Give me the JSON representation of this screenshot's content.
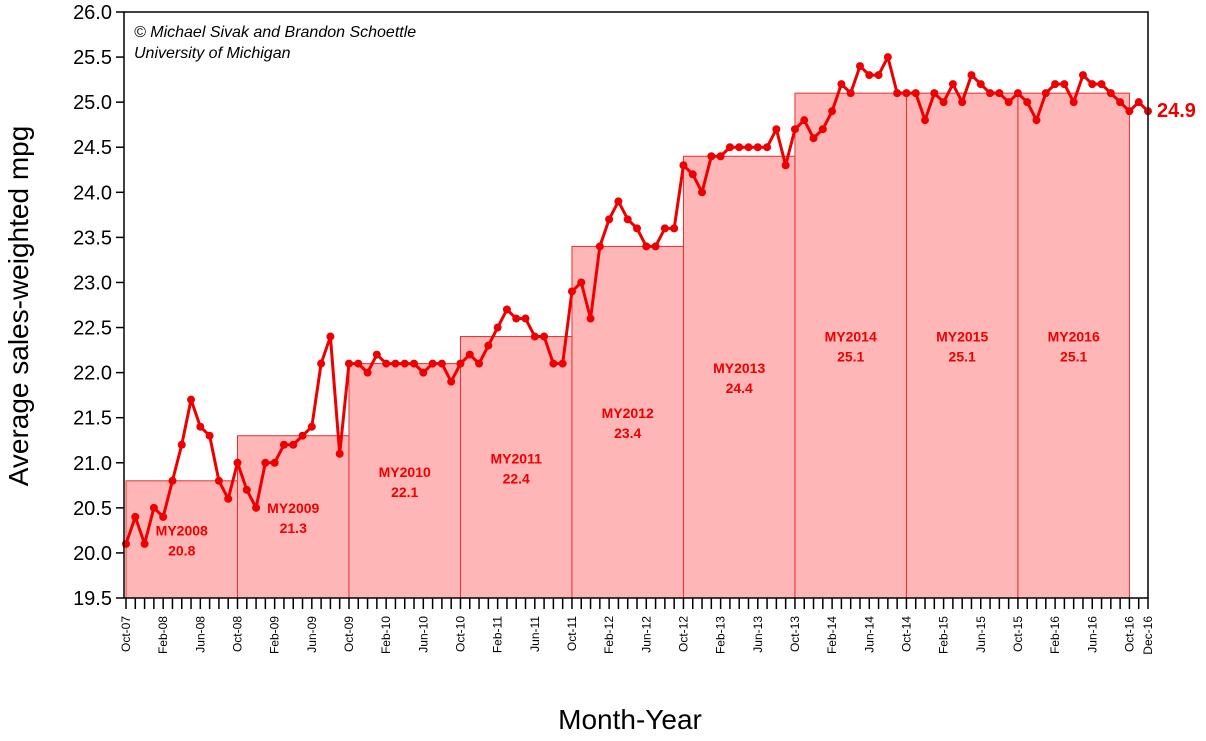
{
  "chart_data": {
    "type": "line",
    "title": "",
    "xlabel": "Month-Year",
    "ylabel": "Average sales-weighted mpg",
    "ylim": [
      19.5,
      26.0
    ],
    "yticks": [
      "19.5",
      "20.0",
      "20.5",
      "21.0",
      "21.5",
      "22.0",
      "22.5",
      "23.0",
      "23.5",
      "24.0",
      "24.5",
      "25.0",
      "25.5",
      "26.0"
    ],
    "grid": false,
    "legend": "none",
    "annotation": {
      "line1": "© Michael Sivak and Brandon Schoettle",
      "line2": "University of Michigan"
    },
    "x_tick_labels": [
      "Oct-07",
      "Feb-08",
      "Jun-08",
      "Oct-08",
      "Feb-09",
      "Jun-09",
      "Oct-09",
      "Feb-10",
      "Jun-10",
      "Oct-10",
      "Feb-11",
      "Jun-11",
      "Oct-11",
      "Feb-12",
      "Jun-12",
      "Oct-12",
      "Feb-13",
      "Jun-13",
      "Oct-13",
      "Feb-14",
      "Jun-14",
      "Oct-14",
      "Feb-15",
      "Jun-15",
      "Oct-15",
      "Feb-16",
      "Jun-16",
      "Oct-16",
      "Dec-16"
    ],
    "series": [
      {
        "name": "",
        "x_start": "Oct-07",
        "x_end": "Dec-16",
        "values": [
          20.1,
          20.4,
          20.1,
          20.5,
          20.4,
          20.8,
          21.2,
          21.7,
          21.4,
          21.3,
          20.8,
          20.6,
          21.0,
          20.7,
          20.5,
          21.0,
          21.0,
          21.2,
          21.2,
          21.3,
          21.4,
          22.1,
          22.4,
          21.1,
          22.1,
          22.1,
          22.0,
          22.2,
          22.1,
          22.1,
          22.1,
          22.1,
          22.0,
          22.1,
          22.1,
          21.9,
          22.1,
          22.2,
          22.1,
          22.3,
          22.5,
          22.7,
          22.6,
          22.6,
          22.4,
          22.4,
          22.1,
          22.1,
          22.9,
          23.0,
          22.6,
          23.4,
          23.7,
          23.9,
          23.7,
          23.6,
          23.4,
          23.4,
          23.6,
          23.6,
          24.3,
          24.2,
          24.0,
          24.4,
          24.4,
          24.5,
          24.5,
          24.5,
          24.5,
          24.5,
          24.7,
          24.3,
          24.7,
          24.8,
          24.6,
          24.7,
          24.9,
          25.2,
          25.1,
          25.4,
          25.3,
          25.3,
          25.5,
          25.1,
          25.1,
          25.1,
          24.8,
          25.1,
          25.0,
          25.2,
          25.0,
          25.3,
          25.2,
          25.1,
          25.1,
          25.0,
          25.1,
          25.0,
          24.8,
          25.1,
          25.2,
          25.2,
          25.0,
          25.3,
          25.2,
          25.2,
          25.1,
          25.0,
          24.9,
          25.0,
          24.9
        ],
        "color": "#ee0000"
      }
    ],
    "model_years": [
      {
        "name": "MY2008",
        "value": 20.8
      },
      {
        "name": "MY2009",
        "value": 21.3
      },
      {
        "name": "MY2010",
        "value": 22.1
      },
      {
        "name": "MY2011",
        "value": 22.4
      },
      {
        "name": "MY2012",
        "value": 23.4
      },
      {
        "name": "MY2013",
        "value": 24.4
      },
      {
        "name": "MY2014",
        "value": 25.1
      },
      {
        "name": "MY2015",
        "value": 25.1
      },
      {
        "name": "MY2016",
        "value": 25.1
      }
    ],
    "last_value_label": "24.9",
    "colors": {
      "line": "#ee0000",
      "bar_fill": "#ffb6b6",
      "bar_stroke": "#e53030",
      "label": "#ee0000"
    }
  }
}
